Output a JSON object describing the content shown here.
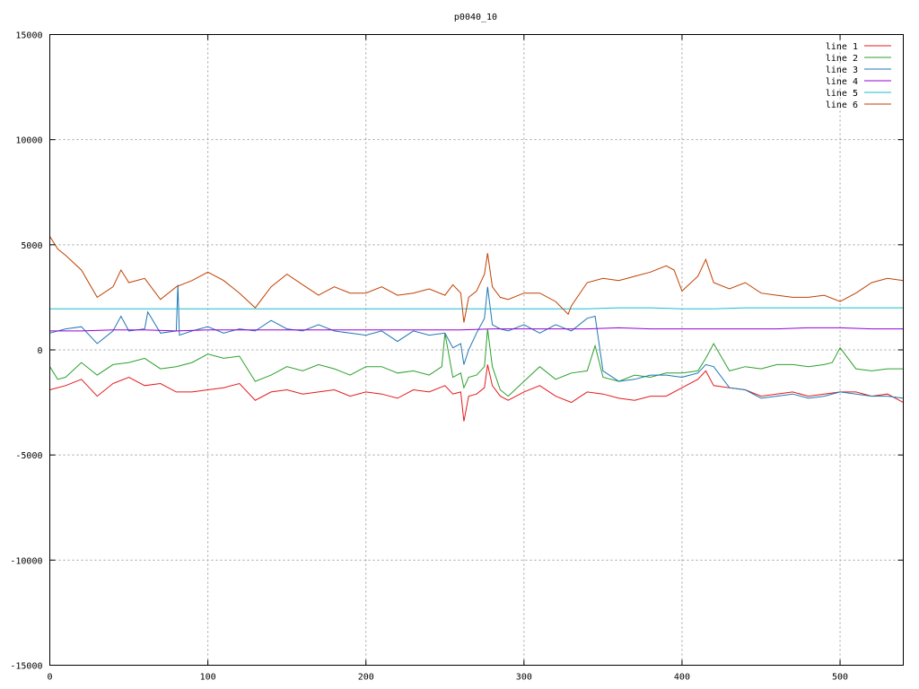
{
  "chart_data": {
    "type": "line",
    "title": "p0040_10",
    "xlabel": "",
    "ylabel": "",
    "xlim": [
      0,
      540
    ],
    "ylim": [
      -15000,
      15000
    ],
    "x_ticks": [
      0,
      100,
      200,
      300,
      400,
      500
    ],
    "y_ticks": [
      -15000,
      -10000,
      -5000,
      0,
      5000,
      10000,
      15000
    ],
    "grid": true,
    "legend_position": "top-right",
    "series": [
      {
        "name": "line 1",
        "color": "#e41a1c",
        "x": [
          0,
          10,
          20,
          30,
          40,
          50,
          60,
          70,
          80,
          90,
          100,
          110,
          120,
          130,
          140,
          150,
          160,
          170,
          180,
          190,
          200,
          210,
          220,
          230,
          240,
          250,
          255,
          260,
          262,
          265,
          270,
          275,
          277,
          280,
          285,
          290,
          300,
          310,
          320,
          330,
          340,
          350,
          360,
          370,
          380,
          390,
          400,
          410,
          415,
          420,
          430,
          440,
          450,
          460,
          470,
          480,
          490,
          500,
          510,
          520,
          530,
          540
        ],
        "y": [
          -1900,
          -1700,
          -1400,
          -2200,
          -1600,
          -1300,
          -1700,
          -1600,
          -2000,
          -2000,
          -1900,
          -1800,
          -1600,
          -2400,
          -2000,
          -1900,
          -2100,
          -2000,
          -1900,
          -2200,
          -2000,
          -2100,
          -2300,
          -1900,
          -2000,
          -1700,
          -2100,
          -2000,
          -3400,
          -2200,
          -2100,
          -1800,
          -700,
          -1700,
          -2200,
          -2400,
          -2000,
          -1700,
          -2200,
          -2500,
          -2000,
          -2100,
          -2300,
          -2400,
          -2200,
          -2200,
          -1800,
          -1400,
          -1000,
          -1700,
          -1800,
          -1900,
          -2200,
          -2100,
          -2000,
          -2200,
          -2100,
          -2000,
          -2000,
          -2200,
          -2100,
          -2500
        ]
      },
      {
        "name": "line 2",
        "color": "#2ca02c",
        "x": [
          0,
          5,
          10,
          20,
          30,
          40,
          50,
          60,
          70,
          80,
          90,
          100,
          110,
          120,
          130,
          140,
          150,
          160,
          170,
          180,
          190,
          200,
          210,
          220,
          230,
          240,
          248,
          250,
          255,
          260,
          262,
          265,
          270,
          275,
          277,
          280,
          285,
          290,
          300,
          310,
          320,
          330,
          340,
          345,
          350,
          360,
          370,
          380,
          390,
          400,
          410,
          415,
          420,
          430,
          440,
          450,
          460,
          470,
          480,
          490,
          495,
          500,
          510,
          520,
          530,
          540
        ],
        "y": [
          -800,
          -1400,
          -1300,
          -600,
          -1200,
          -700,
          -600,
          -400,
          -900,
          -800,
          -600,
          -200,
          -400,
          -300,
          -1500,
          -1200,
          -800,
          -1000,
          -700,
          -900,
          -1200,
          -800,
          -800,
          -1100,
          -1000,
          -1200,
          -800,
          800,
          -1300,
          -1100,
          -1800,
          -1300,
          -1200,
          -800,
          1000,
          -800,
          -1900,
          -2200,
          -1500,
          -800,
          -1400,
          -1100,
          -1000,
          200,
          -1300,
          -1500,
          -1200,
          -1300,
          -1100,
          -1100,
          -1000,
          -400,
          300,
          -1000,
          -800,
          -900,
          -700,
          -700,
          -800,
          -700,
          -600,
          100,
          -900,
          -1000,
          -900,
          -900
        ]
      },
      {
        "name": "line 3",
        "color": "#1f77b4",
        "x": [
          0,
          10,
          20,
          30,
          40,
          45,
          50,
          60,
          62,
          70,
          80,
          81,
          82,
          90,
          100,
          110,
          120,
          130,
          140,
          150,
          160,
          170,
          180,
          190,
          200,
          210,
          220,
          230,
          240,
          250,
          255,
          260,
          262,
          265,
          270,
          275,
          277,
          280,
          285,
          290,
          300,
          310,
          320,
          330,
          340,
          345,
          350,
          360,
          370,
          380,
          390,
          400,
          410,
          415,
          420,
          430,
          440,
          450,
          460,
          470,
          480,
          490,
          500,
          510,
          520,
          530,
          540
        ],
        "y": [
          800,
          1000,
          1100,
          300,
          900,
          1600,
          900,
          1000,
          1800,
          800,
          900,
          3100,
          700,
          900,
          1100,
          800,
          1000,
          900,
          1400,
          1000,
          900,
          1200,
          900,
          800,
          700,
          900,
          400,
          900,
          700,
          800,
          100,
          300,
          -700,
          0,
          800,
          1500,
          3000,
          1200,
          1000,
          900,
          1200,
          800,
          1200,
          900,
          1500,
          1600,
          -1000,
          -1500,
          -1400,
          -1200,
          -1200,
          -1300,
          -1100,
          -700,
          -800,
          -1800,
          -1900,
          -2300,
          -2200,
          -2100,
          -2300,
          -2200,
          -2000,
          -2100,
          -2200,
          -2200,
          -2300
        ]
      },
      {
        "name": "line 4",
        "color": "#9400d3",
        "x": [
          0,
          20,
          40,
          60,
          80,
          100,
          120,
          140,
          160,
          180,
          200,
          220,
          240,
          260,
          280,
          300,
          320,
          340,
          360,
          380,
          400,
          420,
          440,
          460,
          480,
          500,
          520,
          540
        ],
        "y": [
          900,
          900,
          950,
          950,
          900,
          950,
          950,
          950,
          950,
          950,
          950,
          950,
          950,
          950,
          1000,
          1000,
          1000,
          1000,
          1050,
          1000,
          1000,
          1000,
          1000,
          1000,
          1050,
          1050,
          1000,
          1000
        ]
      },
      {
        "name": "line 5",
        "color": "#17becf",
        "x": [
          0,
          20,
          40,
          60,
          80,
          100,
          120,
          140,
          160,
          180,
          200,
          220,
          240,
          260,
          280,
          300,
          320,
          340,
          360,
          380,
          400,
          420,
          440,
          460,
          480,
          500,
          520,
          540
        ],
        "y": [
          1950,
          1950,
          1950,
          1950,
          1950,
          1950,
          1950,
          1950,
          1950,
          1950,
          1950,
          1950,
          1950,
          1950,
          1950,
          1950,
          1950,
          1950,
          2000,
          2000,
          1950,
          1950,
          2000,
          2000,
          2000,
          2000,
          2000,
          2000
        ]
      },
      {
        "name": "line 6",
        "color": "#c04000",
        "x": [
          0,
          5,
          10,
          20,
          30,
          40,
          45,
          50,
          60,
          70,
          80,
          90,
          100,
          110,
          120,
          130,
          140,
          150,
          160,
          170,
          180,
          190,
          200,
          210,
          220,
          230,
          240,
          250,
          255,
          260,
          262,
          265,
          270,
          275,
          277,
          280,
          285,
          290,
          300,
          310,
          320,
          328,
          330,
          340,
          350,
          360,
          370,
          380,
          390,
          395,
          400,
          410,
          415,
          420,
          430,
          440,
          450,
          460,
          470,
          480,
          490,
          500,
          510,
          520,
          530,
          540
        ],
        "y": [
          5400,
          4800,
          4500,
          3800,
          2500,
          3000,
          3800,
          3200,
          3400,
          2400,
          3000,
          3300,
          3700,
          3300,
          2700,
          2000,
          3000,
          3600,
          3100,
          2600,
          3000,
          2700,
          2700,
          3000,
          2600,
          2700,
          2900,
          2600,
          3100,
          2700,
          1300,
          2500,
          2800,
          3600,
          4600,
          3000,
          2500,
          2400,
          2700,
          2700,
          2300,
          1700,
          2100,
          3200,
          3400,
          3300,
          3500,
          3700,
          4000,
          3800,
          2800,
          3500,
          4300,
          3200,
          2900,
          3200,
          2700,
          2600,
          2500,
          2500,
          2600,
          2300,
          2700,
          3200,
          3400,
          3300
        ]
      }
    ]
  }
}
